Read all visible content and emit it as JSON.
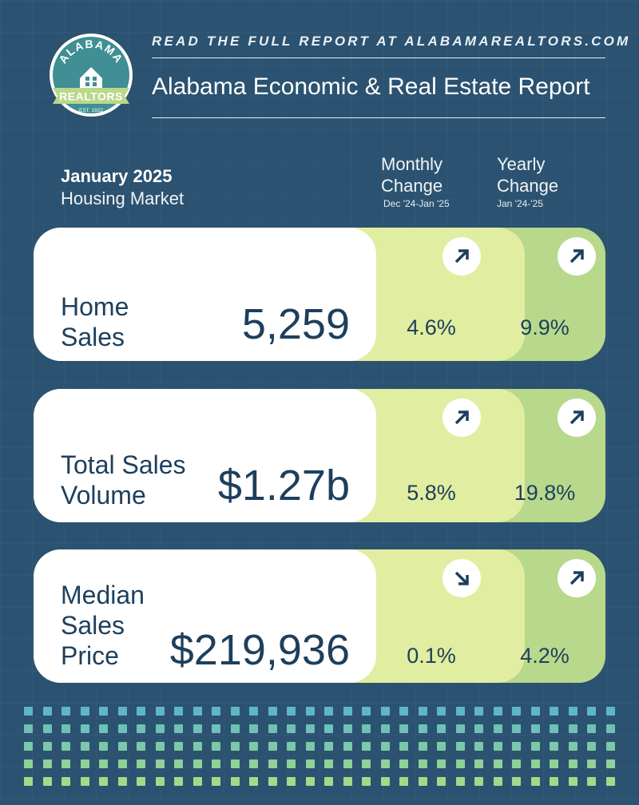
{
  "header": {
    "tagline": "READ THE FULL REPORT AT ALABAMAREALTORS.COM",
    "title": "Alabama Economic & Real Estate Report",
    "logo": {
      "top_text": "ALABAMA",
      "banner_text": "REALTORS",
      "bottom_text": "EST. 1922"
    }
  },
  "period": {
    "title": "January 2025",
    "subtitle": "Housing Market"
  },
  "columns": {
    "monthly": {
      "label_line1": "Monthly",
      "label_line2": "Change",
      "range": "Dec '24-Jan '25"
    },
    "yearly": {
      "label_line1": "Yearly",
      "label_line2": "Change",
      "range": "Jan '24-'25"
    }
  },
  "metrics": [
    {
      "label_line1": "Home",
      "label_line2": "Sales",
      "label_line3": "",
      "value": "5,259",
      "monthly": "4.6%",
      "monthly_dir": "up",
      "yearly": "9.9%",
      "yearly_dir": "up"
    },
    {
      "label_line1": "Total Sales",
      "label_line2": "Volume",
      "label_line3": "",
      "value": "$1.27b",
      "monthly": "5.8%",
      "monthly_dir": "up",
      "yearly": "19.8%",
      "yearly_dir": "up"
    },
    {
      "label_line1": "Median",
      "label_line2": "Sales",
      "label_line3": "Price",
      "value": "$219,936",
      "monthly": "0.1%",
      "monthly_dir": "down",
      "yearly": "4.2%",
      "yearly_dir": "up"
    }
  ],
  "icons": {
    "arrow_up": "arrow-up-right-icon",
    "arrow_down": "arrow-down-right-icon"
  },
  "colors": {
    "background": "#2b5270",
    "navy_text": "#1d3f5c",
    "monthly_fill": "#e1eda0",
    "yearly_fill": "#b8d88c",
    "logo_teal": "#3f8f94",
    "logo_green": "#b9d88a"
  }
}
